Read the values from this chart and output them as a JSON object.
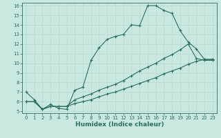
{
  "xlabel": "Humidex (Indice chaleur)",
  "bg_color": "#c8e8e0",
  "grid_color": "#b8d8d0",
  "line_color": "#2a6e62",
  "xlim": [
    -0.5,
    23.5
  ],
  "ylim": [
    4.8,
    16.3
  ],
  "xticks": [
    0,
    1,
    2,
    3,
    4,
    5,
    6,
    7,
    8,
    9,
    10,
    11,
    12,
    13,
    14,
    15,
    16,
    17,
    18,
    19,
    20,
    21,
    22,
    23
  ],
  "yticks": [
    5,
    6,
    7,
    8,
    9,
    10,
    11,
    12,
    13,
    14,
    15,
    16
  ],
  "curve1_x": [
    0,
    1,
    2,
    3,
    4,
    5,
    6,
    7,
    8,
    9,
    10,
    11,
    12,
    13,
    14,
    15,
    16,
    17,
    18,
    19,
    20,
    21,
    22,
    23
  ],
  "curve1_y": [
    7.0,
    6.2,
    5.2,
    5.7,
    5.3,
    5.2,
    7.2,
    7.5,
    10.3,
    11.6,
    12.5,
    12.8,
    13.0,
    14.0,
    13.9,
    16.0,
    16.0,
    15.5,
    15.2,
    13.4,
    12.2,
    11.5,
    10.4,
    10.4
  ],
  "curve2_x": [
    0,
    1,
    2,
    3,
    4,
    5,
    6,
    7,
    8,
    9,
    10,
    11,
    12,
    13,
    14,
    15,
    16,
    17,
    18,
    19,
    20,
    21,
    22,
    23
  ],
  "curve2_y": [
    6.0,
    6.0,
    5.2,
    5.5,
    5.5,
    5.5,
    6.2,
    6.5,
    6.8,
    7.2,
    7.5,
    7.8,
    8.2,
    8.7,
    9.2,
    9.6,
    10.0,
    10.5,
    10.9,
    11.4,
    12.0,
    10.5,
    10.3,
    10.3
  ],
  "curve3_x": [
    0,
    1,
    2,
    3,
    4,
    5,
    6,
    7,
    8,
    9,
    10,
    11,
    12,
    13,
    14,
    15,
    16,
    17,
    18,
    19,
    20,
    21,
    22,
    23
  ],
  "curve3_y": [
    6.0,
    6.0,
    5.2,
    5.5,
    5.5,
    5.5,
    5.8,
    6.0,
    6.2,
    6.5,
    6.8,
    7.0,
    7.3,
    7.6,
    7.9,
    8.2,
    8.5,
    8.9,
    9.2,
    9.5,
    9.9,
    10.2,
    10.4,
    10.4
  ],
  "tick_fontsize": 5.0,
  "xlabel_fontsize": 6.5
}
